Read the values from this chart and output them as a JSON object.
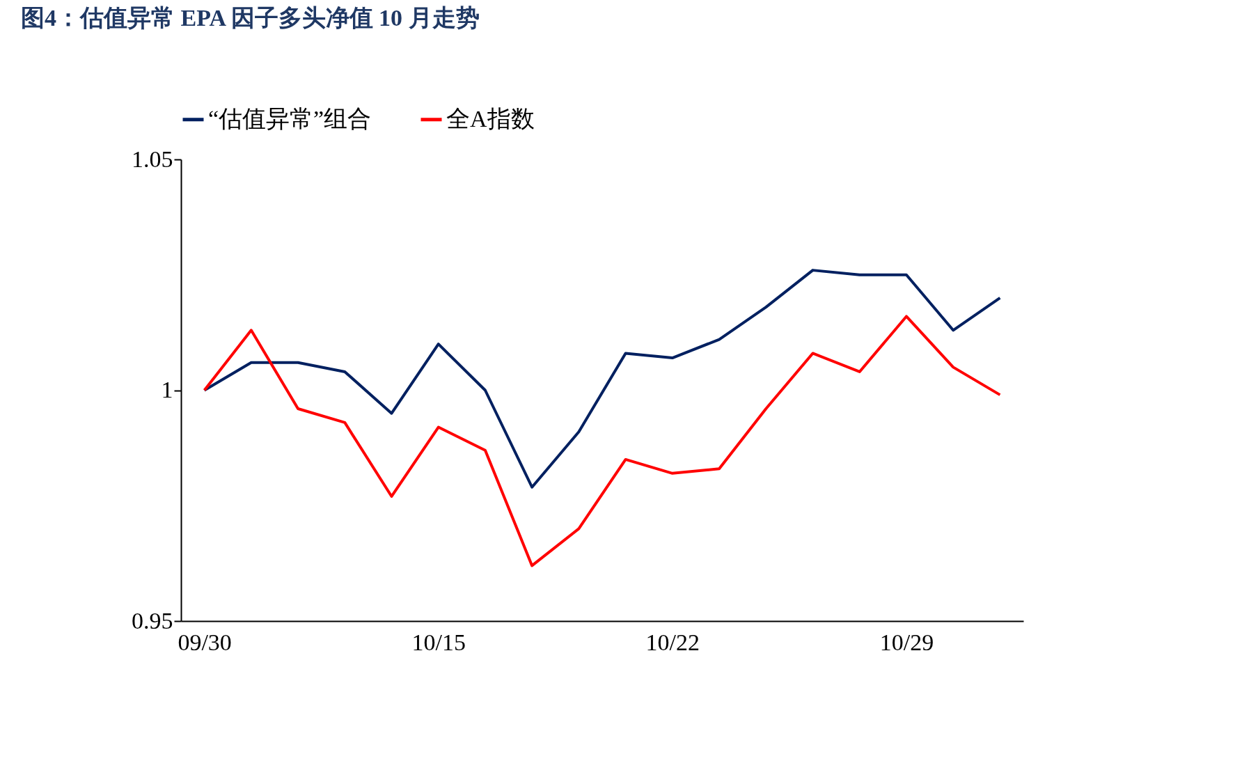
{
  "chart_data": {
    "type": "line",
    "title": "图4：估值异常 EPA 因子多头净值 10 月走势",
    "categories": [
      "09/30",
      null,
      null,
      null,
      null,
      "10/15",
      null,
      null,
      null,
      null,
      "10/22",
      null,
      null,
      null,
      null,
      "10/29",
      null,
      null
    ],
    "series": [
      {
        "name": "“估值异常”组合",
        "color": "#002060",
        "values": [
          1.0,
          1.006,
          1.006,
          1.004,
          0.995,
          1.01,
          1.0,
          0.979,
          0.991,
          1.008,
          1.007,
          1.011,
          1.018,
          1.026,
          1.025,
          1.025,
          1.013,
          1.02
        ]
      },
      {
        "name": "全A指数",
        "color": "#ff0000",
        "values": [
          1.0,
          1.013,
          0.996,
          0.993,
          0.977,
          0.992,
          0.987,
          0.962,
          0.97,
          0.985,
          0.982,
          0.983,
          0.996,
          1.008,
          1.004,
          1.016,
          1.005,
          0.999
        ]
      }
    ],
    "ylim": [
      0.95,
      1.05
    ],
    "yticks": [
      0.95,
      1,
      1.05
    ],
    "grid": false,
    "legend": "top",
    "marker": "none",
    "line_style": "solid"
  }
}
